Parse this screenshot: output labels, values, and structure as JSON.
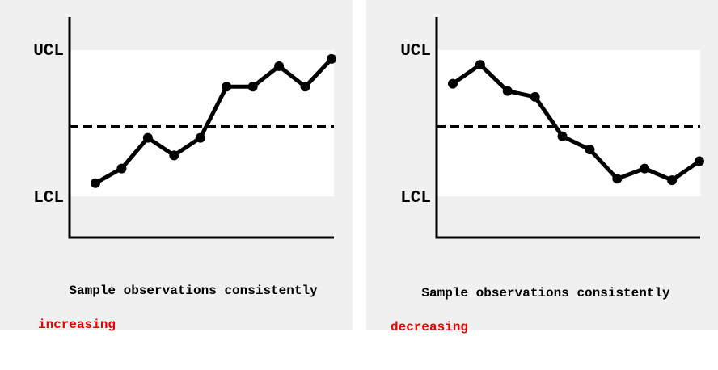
{
  "colors": {
    "panel_background": "#f0f0f0",
    "control_band": "#ffffff",
    "line": "#000000",
    "highlight": "#ee0000"
  },
  "chart_data": [
    {
      "type": "line",
      "title": "",
      "upper_limit_label": "UCL",
      "lower_limit_label": "LCL",
      "center_line": "dashed",
      "y_range": "UCL = 1, LCL = 0",
      "x": [
        1,
        2,
        3,
        4,
        5,
        6,
        7,
        8,
        9,
        10
      ],
      "series": [
        {
          "values": [
            0.09,
            0.19,
            0.4,
            0.28,
            0.4,
            0.75,
            0.75,
            0.89,
            0.75,
            0.94
          ]
        }
      ],
      "caption": "Sample observations consistently",
      "caption_highlight": "increasing"
    },
    {
      "type": "line",
      "title": "",
      "upper_limit_label": "UCL",
      "lower_limit_label": "LCL",
      "center_line": "dashed",
      "y_range": "UCL = 1, LCL = 0",
      "x": [
        1,
        2,
        3,
        4,
        5,
        6,
        7,
        8,
        9,
        10
      ],
      "series": [
        {
          "values": [
            0.77,
            0.9,
            0.72,
            0.68,
            0.41,
            0.32,
            0.12,
            0.19,
            0.11,
            0.24
          ]
        }
      ],
      "caption": "Sample observations consistently",
      "caption_highlight": "decreasing"
    }
  ]
}
